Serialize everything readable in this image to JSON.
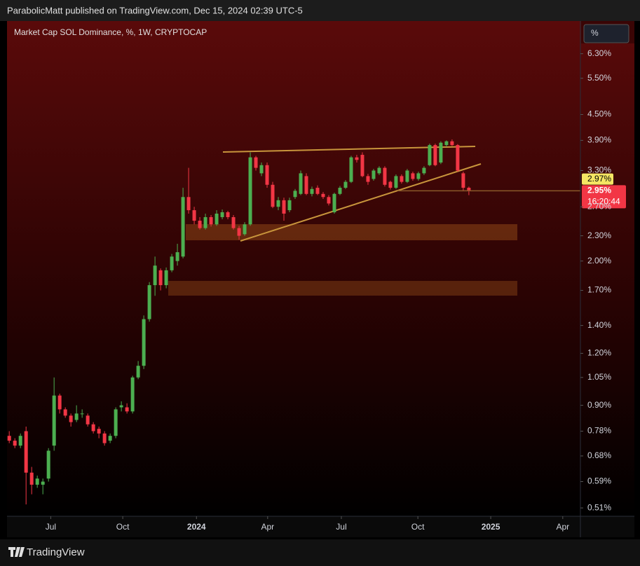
{
  "header": {
    "text": "ParabolicMatt published on TradingView.com, Dec 15, 2024 02:39 UTC-5"
  },
  "toolbar": {
    "scale_button": "%"
  },
  "footer": {
    "brand": "TradingView"
  },
  "chart_data": {
    "type": "candlestick",
    "title": "Market Cap SOL Dominance, %, 1W, CRYPTOCAP",
    "log_scale": true,
    "grid": false,
    "up_color": "#4caf50",
    "down_color": "#f23645",
    "x": [
      0,
      1,
      2,
      3,
      4,
      5,
      6,
      7,
      8,
      9,
      10,
      11,
      12,
      13,
      14,
      15,
      16,
      17,
      18,
      19,
      20,
      21,
      22,
      23,
      24,
      25,
      26,
      27,
      28,
      29,
      30,
      31,
      32,
      33,
      34,
      35,
      36,
      37,
      38,
      39,
      40,
      41,
      42,
      43,
      44,
      45,
      46,
      47,
      48,
      49,
      50,
      51,
      52,
      53,
      54,
      55,
      56,
      57,
      58,
      59,
      60,
      61,
      62,
      63,
      64,
      65,
      66,
      67,
      68,
      69,
      70,
      71,
      72,
      73,
      74,
      75,
      76,
      77,
      78,
      79,
      80,
      81,
      82
    ],
    "open": [
      0.76,
      0.74,
      0.72,
      0.78,
      0.62,
      0.58,
      0.58,
      0.6,
      0.72,
      0.95,
      0.88,
      0.85,
      0.83,
      0.86,
      0.85,
      0.81,
      0.79,
      0.77,
      0.74,
      0.76,
      0.89,
      0.89,
      0.87,
      1.05,
      1.12,
      1.45,
      1.75,
      1.9,
      1.75,
      1.9,
      2.0,
      2.05,
      2.85,
      2.65,
      2.5,
      2.4,
      2.55,
      2.45,
      2.55,
      2.62,
      2.55,
      2.4,
      2.32,
      2.45,
      3.55,
      3.25,
      3.4,
      3.05,
      2.7,
      2.8,
      2.65,
      2.85,
      2.9,
      3.2,
      2.9,
      3.0,
      2.9,
      2.85,
      2.62,
      2.9,
      3.0,
      3.1,
      3.55,
      3.6,
      3.2,
      3.15,
      3.25,
      3.35,
      3.1,
      3.0,
      3.2,
      3.1,
      3.25,
      3.15,
      3.25,
      3.4,
      3.8,
      3.45,
      3.8,
      3.88,
      3.8,
      3.25,
      3.0
    ],
    "high": [
      0.78,
      0.75,
      0.77,
      0.8,
      0.64,
      0.61,
      0.6,
      0.71,
      1.05,
      0.96,
      0.89,
      0.86,
      0.9,
      0.88,
      0.86,
      0.82,
      0.8,
      0.78,
      0.77,
      0.89,
      0.92,
      0.91,
      1.06,
      1.15,
      1.48,
      1.78,
      2.05,
      1.92,
      1.93,
      2.08,
      2.2,
      3.0,
      3.35,
      2.7,
      2.55,
      2.6,
      2.58,
      2.65,
      2.66,
      2.64,
      2.58,
      2.43,
      2.48,
      3.65,
      3.58,
      3.45,
      3.45,
      3.1,
      2.85,
      2.84,
      2.84,
      2.98,
      3.3,
      3.25,
      3.02,
      3.04,
      2.93,
      2.88,
      2.92,
      3.03,
      3.13,
      3.58,
      3.6,
      3.65,
      3.24,
      3.33,
      3.38,
      3.38,
      3.12,
      3.23,
      3.23,
      3.33,
      3.28,
      3.28,
      3.38,
      3.83,
      3.83,
      3.88,
      3.9,
      3.92,
      3.82,
      3.28,
      3.02
    ],
    "low": [
      0.73,
      0.71,
      0.71,
      0.52,
      0.55,
      0.57,
      0.55,
      0.59,
      0.7,
      0.86,
      0.84,
      0.8,
      0.82,
      0.84,
      0.8,
      0.77,
      0.75,
      0.72,
      0.73,
      0.75,
      0.87,
      0.86,
      0.86,
      1.04,
      1.1,
      1.43,
      1.65,
      1.7,
      1.72,
      1.88,
      1.95,
      2.03,
      2.6,
      2.45,
      2.38,
      2.38,
      2.42,
      2.43,
      2.52,
      2.52,
      2.38,
      2.25,
      2.3,
      2.43,
      3.3,
      3.2,
      3.0,
      2.68,
      2.65,
      2.5,
      2.62,
      2.82,
      2.88,
      2.88,
      2.86,
      2.88,
      2.82,
      2.72,
      2.6,
      2.88,
      2.98,
      3.08,
      3.45,
      3.18,
      3.05,
      3.12,
      3.22,
      3.02,
      2.97,
      2.98,
      3.07,
      3.08,
      3.12,
      3.12,
      3.22,
      3.38,
      3.38,
      3.42,
      3.76,
      3.78,
      3.28,
      2.95,
      2.88
    ],
    "close": [
      0.74,
      0.72,
      0.76,
      0.62,
      0.58,
      0.6,
      0.59,
      0.7,
      0.95,
      0.88,
      0.85,
      0.82,
      0.86,
      0.86,
      0.81,
      0.78,
      0.77,
      0.73,
      0.76,
      0.88,
      0.9,
      0.87,
      1.05,
      1.12,
      1.45,
      1.75,
      1.95,
      1.75,
      1.9,
      2.05,
      2.1,
      2.85,
      2.65,
      2.5,
      2.4,
      2.55,
      2.45,
      2.6,
      2.62,
      2.55,
      2.4,
      2.3,
      2.45,
      3.55,
      3.35,
      3.4,
      3.05,
      2.7,
      2.8,
      2.6,
      2.8,
      2.95,
      3.25,
      2.9,
      2.98,
      2.9,
      2.85,
      2.75,
      2.9,
      3.0,
      3.1,
      3.55,
      3.5,
      3.2,
      3.1,
      3.3,
      3.35,
      3.05,
      3.0,
      3.2,
      3.1,
      3.3,
      3.15,
      3.25,
      3.35,
      3.8,
      3.4,
      3.85,
      3.88,
      3.8,
      3.3,
      3.0,
      2.95
    ],
    "xlim": [
      -0.4,
      101.9
    ],
    "xticks": [
      {
        "value": 7.4,
        "label": "Jul"
      },
      {
        "value": 20.25,
        "label": "Oct"
      },
      {
        "value": 33.4,
        "label": "2024"
      },
      {
        "value": 46.1,
        "label": "Apr"
      },
      {
        "value": 59.25,
        "label": "Jul"
      },
      {
        "value": 72.9,
        "label": "Oct"
      },
      {
        "value": 85.9,
        "label": "2025"
      },
      {
        "value": 98.75,
        "label": "Apr"
      }
    ],
    "ylim": [
      0.487,
      7.55
    ],
    "yticks": [
      {
        "value": 0.51,
        "label": "0.51%"
      },
      {
        "value": 0.59,
        "label": "0.59%"
      },
      {
        "value": 0.68,
        "label": "0.68%"
      },
      {
        "value": 0.78,
        "label": "0.78%"
      },
      {
        "value": 0.9,
        "label": "0.90%"
      },
      {
        "value": 1.05,
        "label": "1.05%"
      },
      {
        "value": 1.2,
        "label": "1.20%"
      },
      {
        "value": 1.4,
        "label": "1.40%"
      },
      {
        "value": 1.7,
        "label": "1.70%"
      },
      {
        "value": 2,
        "label": "2.00%"
      },
      {
        "value": 2.3,
        "label": "2.30%"
      },
      {
        "value": 2.7,
        "label": "2.70%"
      },
      {
        "value": 3.3,
        "label": "3.30%"
      },
      {
        "value": 3.9,
        "label": "3.90%"
      },
      {
        "value": 4.5,
        "label": "4.50%"
      },
      {
        "value": 5.5,
        "label": "5.50%"
      },
      {
        "value": 6.3,
        "label": "6.30%"
      }
    ],
    "price_labels": [
      {
        "value": 2.97,
        "label": "2.97%"
      },
      {
        "value": 2.95,
        "label": "2.95%"
      }
    ],
    "countdown": "16:20:44"
  }
}
